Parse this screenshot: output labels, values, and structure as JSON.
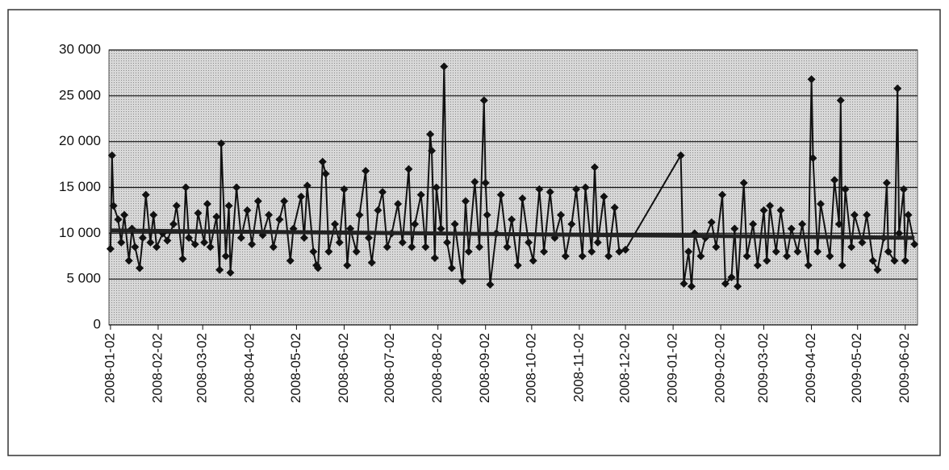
{
  "chart_data": {
    "type": "line",
    "xlim": [
      "2008-01-01",
      "2009-06-10"
    ],
    "xticks": [
      "2008-01-02",
      "2008-02-02",
      "2008-03-02",
      "2008-04-02",
      "2008-05-02",
      "2008-06-02",
      "2008-07-02",
      "2008-08-02",
      "2008-09-02",
      "2008-10-02",
      "2008-11-02",
      "2008-12-02",
      "2009-01-02",
      "2009-02-02",
      "2009-03-02",
      "2009-04-02",
      "2009-05-02",
      "2009-06-02"
    ],
    "ylim": [
      0,
      30000
    ],
    "yticks": [
      0,
      {
        "value": 5000,
        "label": "5 000"
      },
      {
        "value": 10000,
        "label": "10 000"
      },
      {
        "value": 15000,
        "label": "15 000"
      },
      {
        "value": 20000,
        "label": "20 000"
      },
      {
        "value": 25000,
        "label": "25 000"
      },
      {
        "value": 30000,
        "label": "30 000"
      }
    ],
    "grid": true,
    "series": [
      {
        "color": "#111111",
        "marker": "diamond",
        "x": [
          "2008-01-02",
          "2008-01-03",
          "2008-01-04",
          "2008-01-07",
          "2008-01-09",
          "2008-01-11",
          "2008-01-14",
          "2008-01-16",
          "2008-01-18",
          "2008-01-21",
          "2008-01-23",
          "2008-01-25",
          "2008-01-28",
          "2008-01-30",
          "2008-02-01",
          "2008-02-05",
          "2008-02-08",
          "2008-02-12",
          "2008-02-14",
          "2008-02-18",
          "2008-02-20",
          "2008-02-22",
          "2008-02-26",
          "2008-02-28",
          "2008-03-03",
          "2008-03-05",
          "2008-03-07",
          "2008-03-11",
          "2008-03-13",
          "2008-03-14",
          "2008-03-17",
          "2008-03-19",
          "2008-03-20",
          "2008-03-24",
          "2008-03-27",
          "2008-03-31",
          "2008-04-03",
          "2008-04-07",
          "2008-04-10",
          "2008-04-14",
          "2008-04-17",
          "2008-04-21",
          "2008-04-24",
          "2008-04-28",
          "2008-04-30",
          "2008-05-05",
          "2008-05-07",
          "2008-05-09",
          "2008-05-13",
          "2008-05-15",
          "2008-05-16",
          "2008-05-19",
          "2008-05-21",
          "2008-05-23",
          "2008-05-27",
          "2008-05-30",
          "2008-06-02",
          "2008-06-04",
          "2008-06-06",
          "2008-06-10",
          "2008-06-12",
          "2008-06-16",
          "2008-06-18",
          "2008-06-20",
          "2008-06-24",
          "2008-06-27",
          "2008-06-30",
          "2008-07-03",
          "2008-07-07",
          "2008-07-10",
          "2008-07-14",
          "2008-07-16",
          "2008-07-18",
          "2008-07-22",
          "2008-07-25",
          "2008-07-28",
          "2008-07-29",
          "2008-07-31",
          "2008-08-01",
          "2008-08-04",
          "2008-08-06",
          "2008-08-08",
          "2008-08-11",
          "2008-08-13",
          "2008-08-18",
          "2008-08-20",
          "2008-08-22",
          "2008-08-26",
          "2008-08-29",
          "2008-09-01",
          "2008-09-02",
          "2008-09-03",
          "2008-09-05",
          "2008-09-09",
          "2008-09-12",
          "2008-09-16",
          "2008-09-19",
          "2008-09-23",
          "2008-09-26",
          "2008-09-30",
          "2008-10-03",
          "2008-10-07",
          "2008-10-10",
          "2008-10-14",
          "2008-10-17",
          "2008-10-21",
          "2008-10-24",
          "2008-10-28",
          "2008-10-31",
          "2008-11-04",
          "2008-11-06",
          "2008-11-10",
          "2008-11-12",
          "2008-11-14",
          "2008-11-18",
          "2008-11-21",
          "2008-11-25",
          "2008-11-28",
          "2008-12-02",
          "2009-01-07",
          "2009-01-09",
          "2009-01-12",
          "2009-01-14",
          "2009-01-16",
          "2009-01-20",
          "2009-01-23",
          "2009-01-27",
          "2009-01-30",
          "2009-02-03",
          "2009-02-05",
          "2009-02-09",
          "2009-02-11",
          "2009-02-13",
          "2009-02-17",
          "2009-02-19",
          "2009-02-23",
          "2009-02-26",
          "2009-03-02",
          "2009-03-04",
          "2009-03-06",
          "2009-03-10",
          "2009-03-13",
          "2009-03-17",
          "2009-03-20",
          "2009-03-24",
          "2009-03-27",
          "2009-03-31",
          "2009-04-02",
          "2009-04-03",
          "2009-04-06",
          "2009-04-08",
          "2009-04-14",
          "2009-04-17",
          "2009-04-20",
          "2009-04-21",
          "2009-04-22",
          "2009-04-24",
          "2009-04-28",
          "2009-04-30",
          "2009-05-05",
          "2009-05-08",
          "2009-05-12",
          "2009-05-15",
          "2009-05-19",
          "2009-05-21",
          "2009-05-22",
          "2009-05-26",
          "2009-05-28",
          "2009-05-29",
          "2009-06-01",
          "2009-06-02",
          "2009-06-04",
          "2009-06-08"
        ],
        "values": [
          8300,
          18500,
          13000,
          11500,
          9000,
          12000,
          7000,
          10500,
          8500,
          6200,
          9500,
          14200,
          9000,
          12000,
          8500,
          10000,
          9200,
          11000,
          13000,
          7200,
          15000,
          9500,
          8800,
          12200,
          9000,
          13200,
          8500,
          11800,
          6000,
          19800,
          7500,
          13000,
          5700,
          15000,
          9500,
          12500,
          8800,
          13500,
          9800,
          12000,
          8500,
          11500,
          13500,
          7000,
          10500,
          14000,
          9500,
          15200,
          8000,
          6500,
          6200,
          17800,
          16500,
          8000,
          11000,
          9000,
          14800,
          6500,
          10500,
          8000,
          12000,
          16800,
          9500,
          6800,
          12500,
          14500,
          8500,
          10000,
          13200,
          9000,
          17000,
          8500,
          11000,
          14200,
          8500,
          20800,
          19000,
          7300,
          15000,
          10500,
          28200,
          9000,
          6200,
          11000,
          4800,
          13500,
          8000,
          15600,
          8500,
          24500,
          15500,
          12000,
          4400,
          10000,
          14200,
          8500,
          11500,
          6500,
          13800,
          9000,
          7000,
          14800,
          8000,
          14500,
          9500,
          12000,
          7500,
          11000,
          14800,
          7500,
          15000,
          8000,
          17200,
          9000,
          14000,
          7500,
          12800,
          8000,
          8200,
          18500,
          4500,
          8000,
          4200,
          10000,
          7500,
          9500,
          11200,
          8500,
          14200,
          4500,
          5200,
          10500,
          4200,
          15500,
          7500,
          11000,
          6500,
          12500,
          7000,
          13000,
          8000,
          12500,
          7500,
          10500,
          8000,
          11000,
          6500,
          26800,
          18200,
          8000,
          13200,
          7500,
          15800,
          11000,
          24500,
          6500,
          14800,
          8500,
          12000,
          9000,
          12000,
          7000,
          6000,
          9500,
          15500,
          8000,
          7000,
          25800,
          10000,
          14800,
          7000,
          12000,
          8800
        ]
      },
      {
        "color": "#222222",
        "x": [
          "2008-01-02",
          "2009-06-08"
        ],
        "values": [
          10300,
          9500
        ]
      }
    ]
  }
}
